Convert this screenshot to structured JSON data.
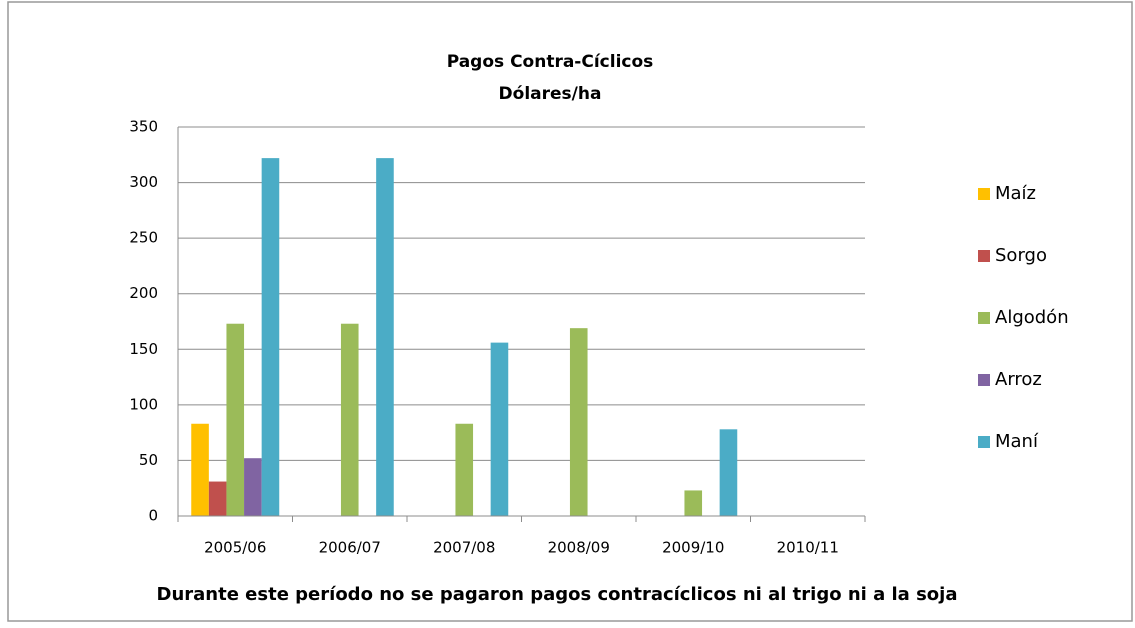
{
  "chart_data": {
    "type": "bar",
    "title": "Pagos Contra-Cíclicos",
    "subtitle": "Dólares/ha",
    "annotation": "Durante este período no se pagaron pagos contracíclicos ni al trigo ni a la soja",
    "categories": [
      "2005/06",
      "2006/07",
      "2007/08",
      "2008/09",
      "2009/10",
      "2010/11"
    ],
    "series": [
      {
        "name": "Maíz",
        "color": "#ffc000",
        "values": [
          83,
          0,
          0,
          0,
          0,
          0
        ]
      },
      {
        "name": "Sorgo",
        "color": "#c0504d",
        "values": [
          31,
          0,
          0,
          0,
          0,
          0
        ]
      },
      {
        "name": "Algodón",
        "color": "#9bbb59",
        "values": [
          173,
          173,
          83,
          169,
          23,
          0
        ]
      },
      {
        "name": "Arroz",
        "color": "#8064a2",
        "values": [
          52,
          0,
          0,
          0,
          0,
          0
        ]
      },
      {
        "name": "Maní",
        "color": "#4bacc6",
        "values": [
          322,
          322,
          156,
          0,
          78,
          0
        ]
      }
    ],
    "ylim": [
      0,
      350
    ],
    "yticks": [
      0,
      50,
      100,
      150,
      200,
      250,
      300,
      350
    ],
    "grid": true,
    "legend": "right"
  }
}
